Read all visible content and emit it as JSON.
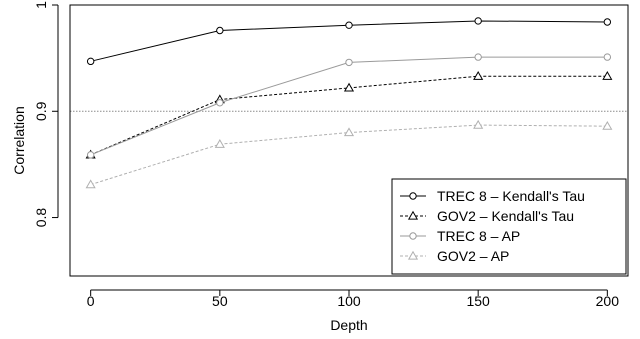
{
  "chart_data": {
    "type": "line",
    "xlabel": "Depth",
    "ylabel": "Correlation",
    "x": [
      0,
      50,
      100,
      150,
      200
    ],
    "xticks": [
      "0",
      "50",
      "100",
      "150",
      "200"
    ],
    "yticks": [
      "0.8",
      "0.9",
      "1"
    ],
    "ytick_values": [
      0.8,
      0.9,
      1.0
    ],
    "xlim": [
      -8,
      208
    ],
    "ylim": [
      0.745,
      1.0
    ],
    "reference_line": 0.9,
    "grid": false,
    "legend_position": "bottom-right",
    "series": [
      {
        "name": "TREC 8 – Kendall's Tau",
        "values": [
          0.947,
          0.976,
          0.981,
          0.985,
          0.984
        ],
        "color": "#000000",
        "marker": "circle",
        "dash": "solid"
      },
      {
        "name": "GOV2 – Kendall's Tau",
        "values": [
          0.859,
          0.911,
          0.922,
          0.933,
          0.933
        ],
        "color": "#000000",
        "marker": "triangle",
        "dash": "dashed"
      },
      {
        "name": "TREC 8 – AP",
        "values": [
          0.859,
          0.908,
          0.946,
          0.951,
          0.951
        ],
        "color": "#9a9a9a",
        "marker": "circle",
        "dash": "solid"
      },
      {
        "name": "GOV2 – AP",
        "values": [
          0.831,
          0.869,
          0.88,
          0.887,
          0.886
        ],
        "color": "#b0b0b0",
        "marker": "triangle",
        "dash": "dashed"
      }
    ]
  }
}
